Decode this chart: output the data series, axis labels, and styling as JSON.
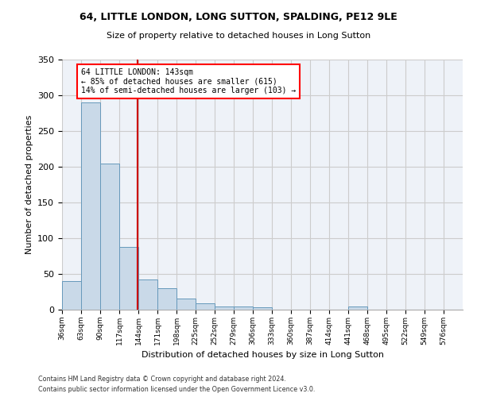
{
  "title_line1": "64, LITTLE LONDON, LONG SUTTON, SPALDING, PE12 9LE",
  "title_line2": "Size of property relative to detached houses in Long Sutton",
  "xlabel": "Distribution of detached houses by size in Long Sutton",
  "ylabel": "Number of detached properties",
  "bin_labels": [
    "36sqm",
    "63sqm",
    "90sqm",
    "117sqm",
    "144sqm",
    "171sqm",
    "198sqm",
    "225sqm",
    "252sqm",
    "279sqm",
    "306sqm",
    "333sqm",
    "360sqm",
    "387sqm",
    "414sqm",
    "441sqm",
    "468sqm",
    "495sqm",
    "522sqm",
    "549sqm",
    "576sqm"
  ],
  "bin_edges": [
    36,
    63,
    90,
    117,
    144,
    171,
    198,
    225,
    252,
    279,
    306,
    333,
    360,
    387,
    414,
    441,
    468,
    495,
    522,
    549,
    576
  ],
  "bar_heights": [
    40,
    290,
    204,
    88,
    42,
    30,
    16,
    9,
    5,
    5,
    3,
    0,
    0,
    0,
    0,
    4,
    0,
    0,
    0,
    0,
    0
  ],
  "bar_color": "#c9d9e8",
  "bar_edgecolor": "#6699bb",
  "grid_color": "#cccccc",
  "bg_color": "#eef2f8",
  "red_line_x": 143,
  "annotation_text": "64 LITTLE LONDON: 143sqm\n← 85% of detached houses are smaller (615)\n14% of semi-detached houses are larger (103) →",
  "annotation_box_color": "white",
  "annotation_box_edgecolor": "red",
  "red_line_color": "#cc0000",
  "ylim": [
    0,
    350
  ],
  "yticks": [
    0,
    50,
    100,
    150,
    200,
    250,
    300,
    350
  ],
  "footnote1": "Contains HM Land Registry data © Crown copyright and database right 2024.",
  "footnote2": "Contains public sector information licensed under the Open Government Licence v3.0."
}
